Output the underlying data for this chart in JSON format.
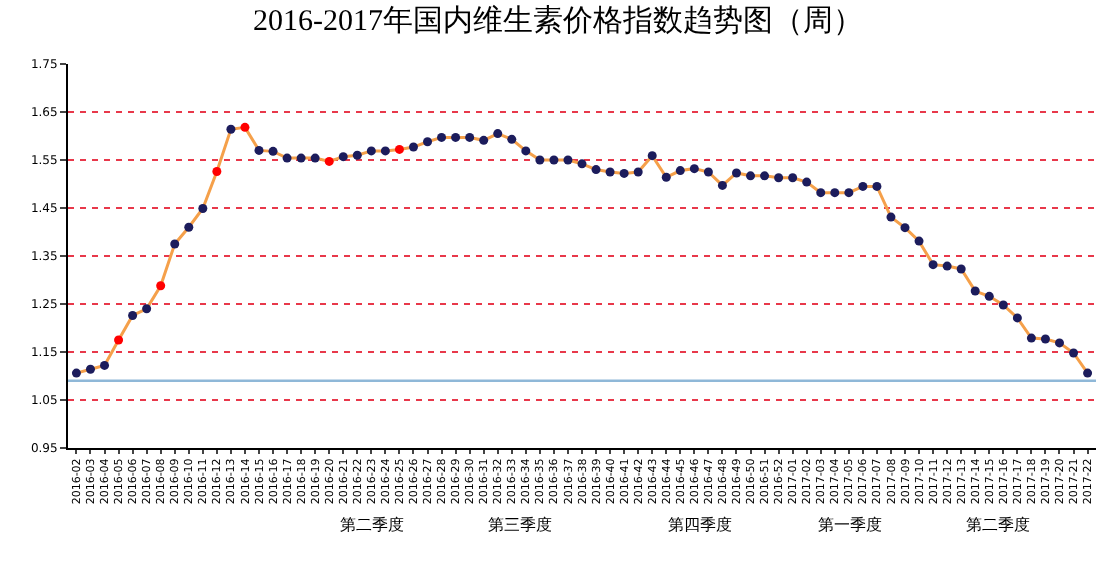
{
  "chart_data": {
    "type": "line",
    "title": "2016-2017年国内维生素价格指数趋势图（周）",
    "categories": [
      "2016-02",
      "2016-03",
      "2016-04",
      "2016-05",
      "2016-06",
      "2016-07",
      "2016-08",
      "2016-09",
      "2016-10",
      "2016-11",
      "2016-12",
      "2016-13",
      "2016-14",
      "2016-15",
      "2016-16",
      "2016-17",
      "2016-18",
      "2016-19",
      "2016-20",
      "2016-21",
      "2016-22",
      "2016-23",
      "2016-24",
      "2016-25",
      "2016-26",
      "2016-27",
      "2016-28",
      "2016-29",
      "2016-30",
      "2016-31",
      "2016-32",
      "2016-33",
      "2016-34",
      "2016-35",
      "2016-36",
      "2016-37",
      "2016-38",
      "2016-39",
      "2016-40",
      "2016-41",
      "2016-42",
      "2016-43",
      "2016-44",
      "2016-45",
      "2016-46",
      "2016-47",
      "2016-48",
      "2016-49",
      "2016-50",
      "2016-51",
      "2016-52",
      "2017-01",
      "2017-02",
      "2017-03",
      "2017-04",
      "2017-05",
      "2017-06",
      "2017-07",
      "2017-08",
      "2017-09",
      "2017-10",
      "2017-11",
      "2017-12",
      "2017-13",
      "2017-14",
      "2017-15",
      "2017-16",
      "2017-17",
      "2017-18",
      "2017-19",
      "2017-20",
      "2017-21",
      "2017-22"
    ],
    "series": [
      {
        "color": "#f5a04a",
        "values": [
          1.106,
          1.114,
          1.122,
          1.175,
          1.226,
          1.24,
          1.288,
          1.375,
          1.41,
          1.449,
          1.526,
          1.614,
          1.618,
          1.57,
          1.568,
          1.554,
          1.554,
          1.554,
          1.547,
          1.557,
          1.56,
          1.569,
          1.569,
          1.572,
          1.577,
          1.588,
          1.597,
          1.597,
          1.597,
          1.591,
          1.605,
          1.593,
          1.569,
          1.55,
          1.55,
          1.55,
          1.542,
          1.53,
          1.525,
          1.522,
          1.525,
          1.559,
          1.514,
          1.528,
          1.532,
          1.525,
          1.497,
          1.523,
          1.517,
          1.517,
          1.513,
          1.513,
          1.504,
          1.482,
          1.482,
          1.482,
          1.495,
          1.495,
          1.431,
          1.409,
          1.381,
          1.332,
          1.329,
          1.323,
          1.277,
          1.266,
          1.248,
          1.221,
          1.179,
          1.177,
          1.169,
          1.148,
          1.106
        ],
        "colors": [
          "#1c1c5c",
          "#1c1c5c",
          "#1c1c5c",
          "#ff0000",
          "#1c1c5c",
          "#1c1c5c",
          "#ff0000",
          "#1c1c5c",
          "#1c1c5c",
          "#1c1c5c",
          "#ff0000",
          "#1c1c5c",
          "#ff0000",
          "#1c1c5c",
          "#1c1c5c",
          "#1c1c5c",
          "#1c1c5c",
          "#1c1c5c",
          "#ff0000",
          "#1c1c5c",
          "#1c1c5c",
          "#1c1c5c",
          "#1c1c5c",
          "#ff0000",
          "#1c1c5c",
          "#1c1c5c",
          "#1c1c5c",
          "#1c1c5c",
          "#1c1c5c",
          "#1c1c5c",
          "#1c1c5c",
          "#1c1c5c",
          "#1c1c5c",
          "#1c1c5c",
          "#1c1c5c",
          "#1c1c5c",
          "#1c1c5c",
          "#1c1c5c",
          "#1c1c5c",
          "#1c1c5c",
          "#1c1c5c",
          "#1c1c5c",
          "#1c1c5c",
          "#1c1c5c",
          "#1c1c5c",
          "#1c1c5c",
          "#1c1c5c",
          "#1c1c5c",
          "#1c1c5c",
          "#1c1c5c",
          "#1c1c5c",
          "#1c1c5c",
          "#1c1c5c",
          "#1c1c5c",
          "#1c1c5c",
          "#1c1c5c",
          "#1c1c5c",
          "#1c1c5c",
          "#1c1c5c",
          "#1c1c5c",
          "#1c1c5c",
          "#1c1c5c",
          "#1c1c5c",
          "#1c1c5c",
          "#1c1c5c",
          "#1c1c5c",
          "#1c1c5c",
          "#1c1c5c",
          "#1c1c5c",
          "#1c1c5c",
          "#1c1c5c",
          "#1c1c5c",
          "#1c1c5c"
        ]
      }
    ],
    "ylim": [
      0.95,
      1.75
    ],
    "yticks": [
      0.95,
      1.05,
      1.15,
      1.25,
      1.35,
      1.45,
      1.55,
      1.65,
      1.75
    ],
    "grid": "y",
    "marker": "circle",
    "line_style": "solid",
    "ref_lines": [
      {
        "axis": "y",
        "value": 1.09,
        "color": "#8fb8d8"
      }
    ],
    "annotations": [
      "第二季度",
      "第三季度",
      "第四季度",
      "第一季度",
      "第二季度"
    ]
  }
}
